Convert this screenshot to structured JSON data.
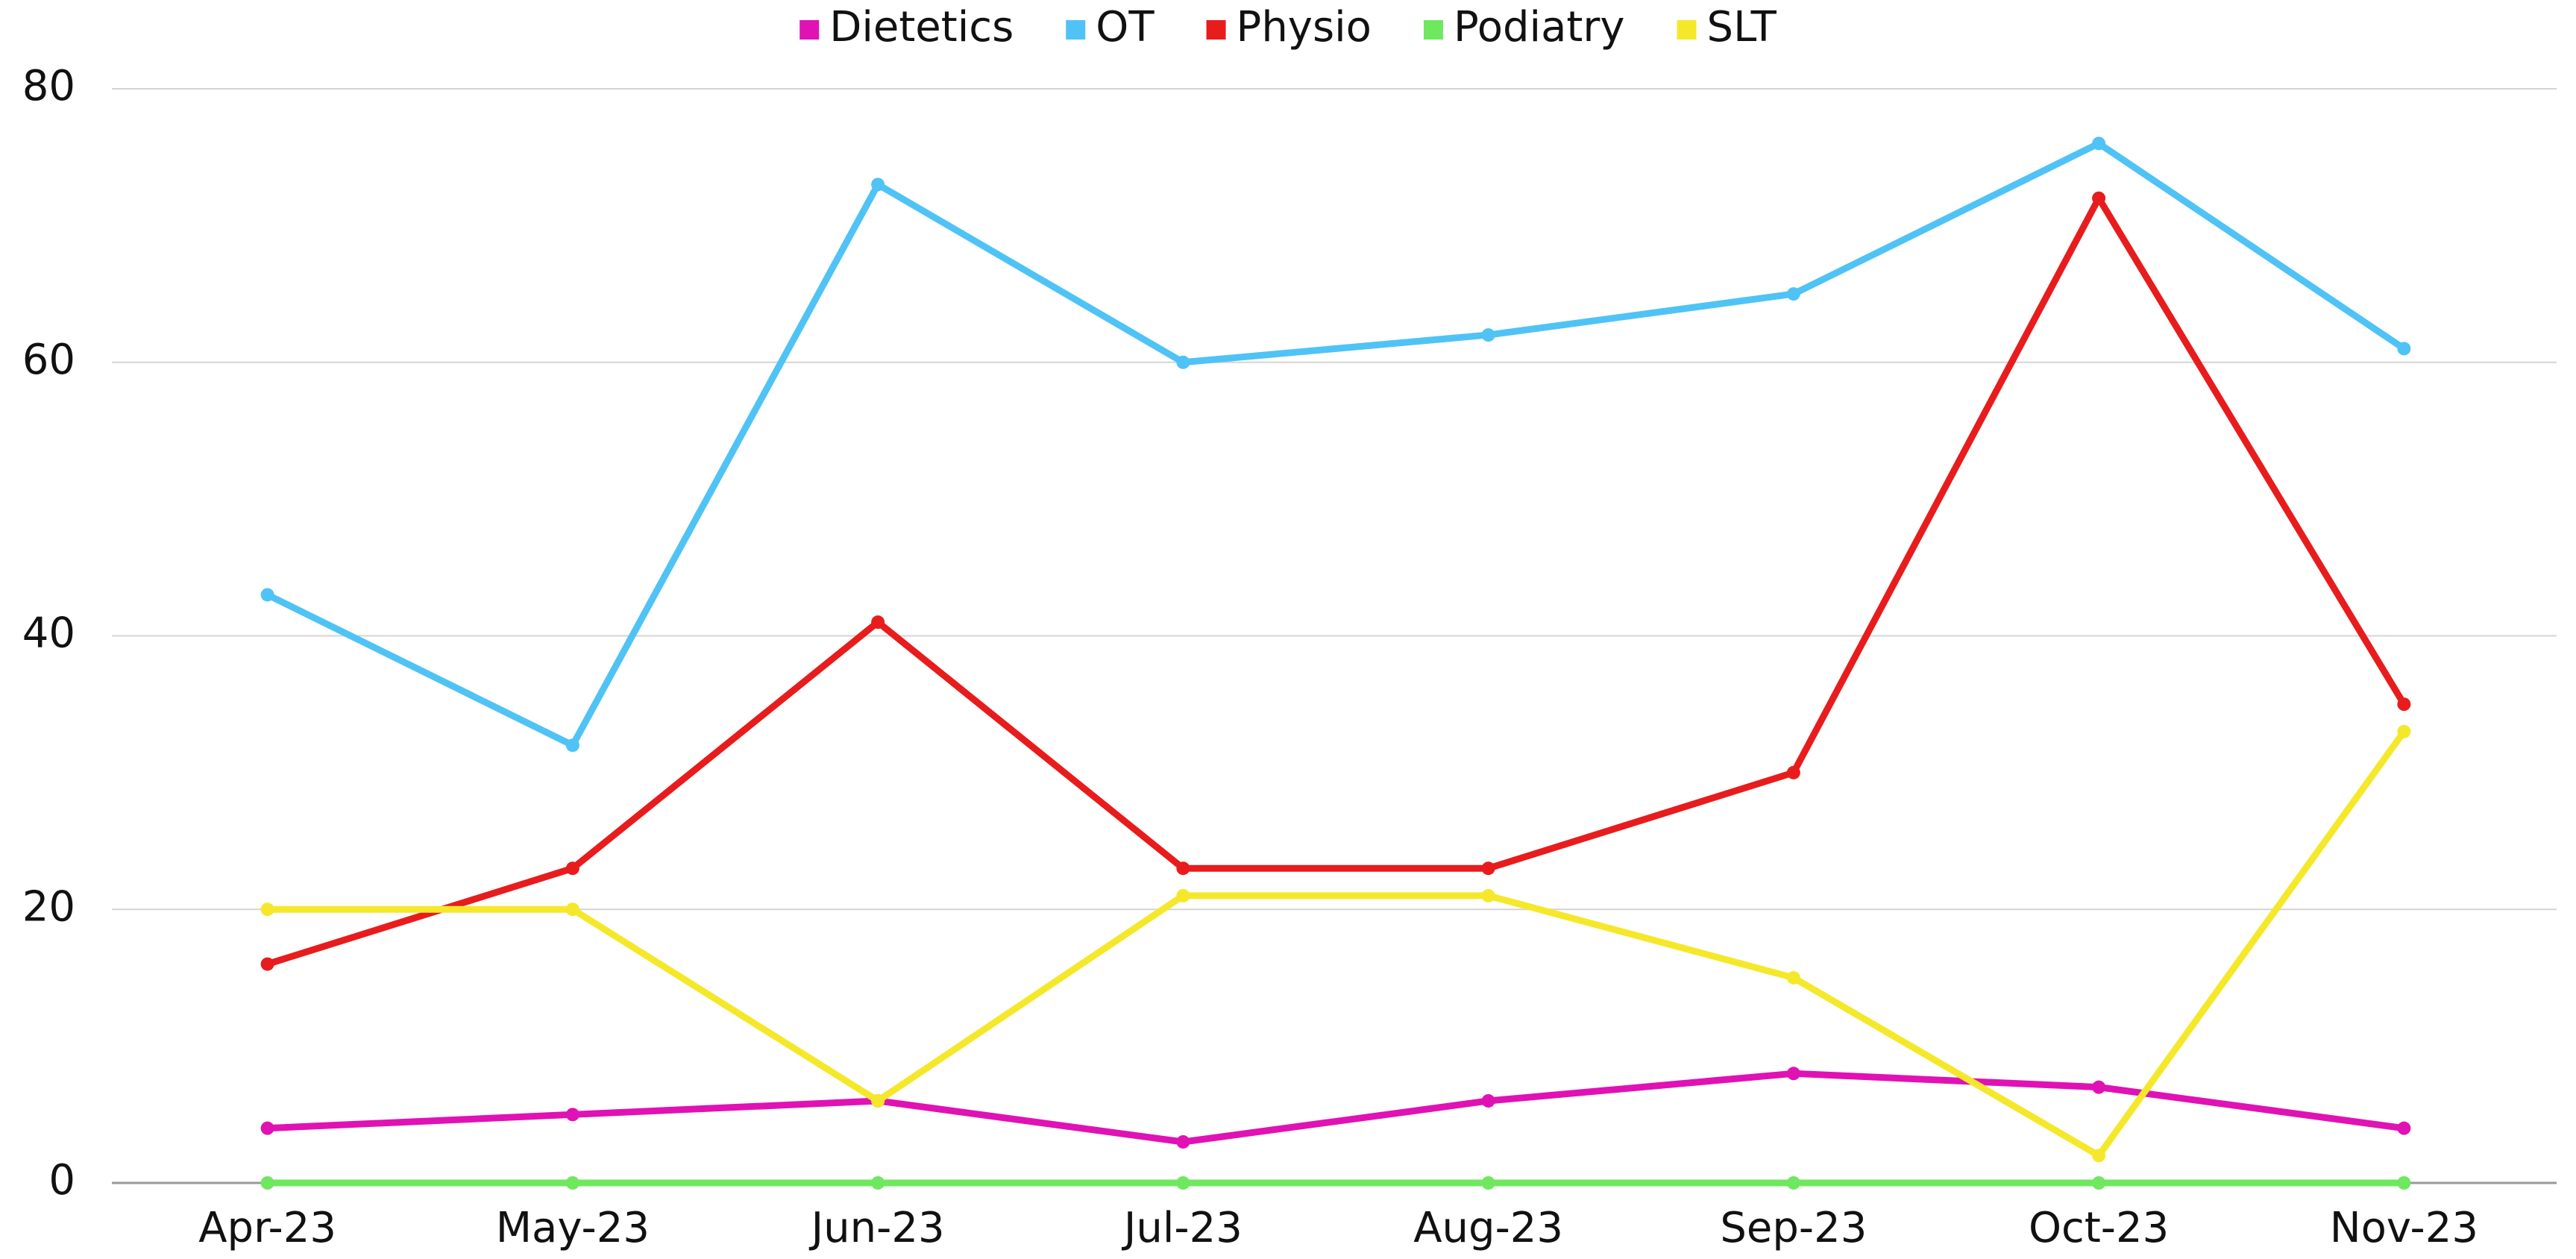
{
  "chart_data": {
    "type": "line",
    "categories": [
      "Apr-23",
      "May-23",
      "Jun-23",
      "Jul-23",
      "Aug-23",
      "Sep-23",
      "Oct-23",
      "Nov-23"
    ],
    "series": [
      {
        "name": "Dietetics",
        "color": "#e012b4",
        "values": [
          4,
          5,
          6,
          3,
          6,
          8,
          7,
          4
        ]
      },
      {
        "name": "OT",
        "color": "#4fc3f5",
        "values": [
          43,
          32,
          73,
          60,
          62,
          65,
          76,
          61
        ]
      },
      {
        "name": "Physio",
        "color": "#e81c1c",
        "values": [
          16,
          23,
          41,
          23,
          23,
          30,
          72,
          35
        ]
      },
      {
        "name": "Podiatry",
        "color": "#6fe860",
        "values": [
          0,
          0,
          0,
          0,
          0,
          0,
          0,
          0
        ]
      },
      {
        "name": "SLT",
        "color": "#f5e82a",
        "values": [
          20,
          20,
          6,
          21,
          21,
          15,
          2,
          33
        ]
      }
    ],
    "ylim": [
      0,
      80
    ],
    "yticks": [
      0,
      20,
      40,
      60,
      80
    ],
    "grid": true,
    "legend": "top"
  }
}
